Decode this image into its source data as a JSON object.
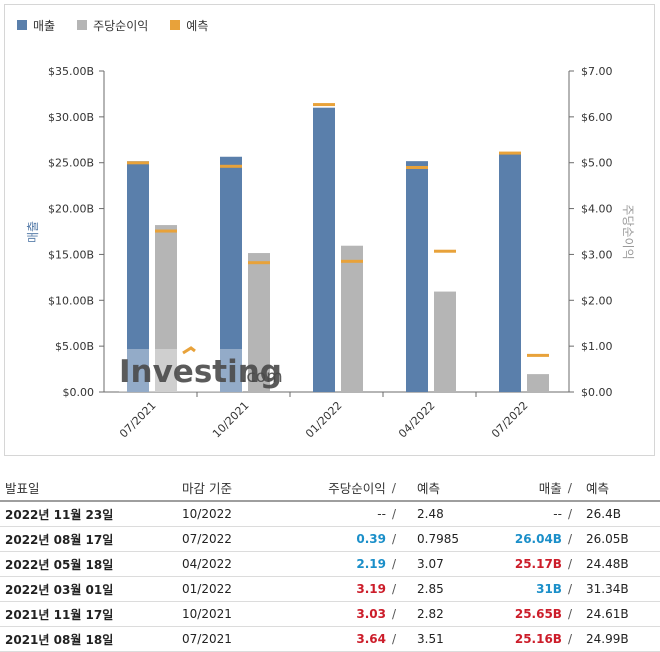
{
  "legend": [
    {
      "label": "매출",
      "color": "#5a7fab",
      "icon": "square-swatch"
    },
    {
      "label": "주당순이익",
      "color": "#b5b5b5",
      "icon": "square-swatch"
    },
    {
      "label": "예측",
      "color": "#e8a23a",
      "icon": "square-swatch"
    }
  ],
  "watermark": {
    "brand": "Investing",
    "suffix": ".com"
  },
  "chart_data": {
    "type": "bar",
    "categories": [
      "07/2021",
      "10/2021",
      "01/2022",
      "04/2022",
      "07/2022"
    ],
    "series": [
      {
        "name": "매출",
        "axis": "left",
        "color": "#5a7fab",
        "values": [
          25.16,
          25.65,
          31.0,
          25.17,
          26.04
        ]
      },
      {
        "name": "주당순이익",
        "axis": "right",
        "color": "#b5b5b5",
        "values": [
          3.64,
          3.03,
          3.19,
          2.19,
          0.39
        ]
      }
    ],
    "forecasts": {
      "name": "예측",
      "color": "#e8a23a",
      "revenue": [
        24.99,
        24.61,
        31.34,
        24.48,
        26.05
      ],
      "eps": [
        3.51,
        2.82,
        2.85,
        3.07,
        0.7985
      ]
    },
    "ylabel_left": "매출",
    "ylabel_right": "주당순이익",
    "ylim_left": [
      0,
      35
    ],
    "ylim_right": [
      0,
      7
    ],
    "yticks_left": [
      "$0.00",
      "$5.00B",
      "$10.00B",
      "$15.00B",
      "$20.00B",
      "$25.00B",
      "$30.00B",
      "$35.00B"
    ],
    "yticks_right": [
      "$0.00",
      "$1.00",
      "$2.00",
      "$3.00",
      "$4.00",
      "$5.00",
      "$6.00",
      "$7.00"
    ],
    "grid": false,
    "legend_position": "top-left"
  },
  "table": {
    "headers": {
      "date": "발표일",
      "period": "마감 기준",
      "eps": "주당순이익",
      "eps_forecast": "예측",
      "revenue": "매출",
      "revenue_forecast": "예측",
      "sep": "/"
    },
    "rows": [
      {
        "date": "2022년 11월 23일",
        "period": "10/2022",
        "eps": "--",
        "eps_forecast": "2.48",
        "revenue": "--",
        "revenue_forecast": "26.4B",
        "eps_status": "neutral",
        "rev_status": "neutral"
      },
      {
        "date": "2022년 08월 17일",
        "period": "07/2022",
        "eps": "0.39",
        "eps_forecast": "0.7985",
        "revenue": "26.04B",
        "revenue_forecast": "26.05B",
        "eps_status": "green",
        "rev_status": "green"
      },
      {
        "date": "2022년 05월 18일",
        "period": "04/2022",
        "eps": "2.19",
        "eps_forecast": "3.07",
        "revenue": "25.17B",
        "revenue_forecast": "24.48B",
        "eps_status": "green",
        "rev_status": "red"
      },
      {
        "date": "2022년 03월 01일",
        "period": "01/2022",
        "eps": "3.19",
        "eps_forecast": "2.85",
        "revenue": "31B",
        "revenue_forecast": "31.34B",
        "eps_status": "red",
        "rev_status": "green"
      },
      {
        "date": "2021년 11월 17일",
        "period": "10/2021",
        "eps": "3.03",
        "eps_forecast": "2.82",
        "revenue": "25.65B",
        "revenue_forecast": "24.61B",
        "eps_status": "red",
        "rev_status": "red"
      },
      {
        "date": "2021년 08월 18일",
        "period": "07/2021",
        "eps": "3.64",
        "eps_forecast": "3.51",
        "revenue": "25.16B",
        "revenue_forecast": "24.99B",
        "eps_status": "red",
        "rev_status": "red"
      }
    ]
  }
}
